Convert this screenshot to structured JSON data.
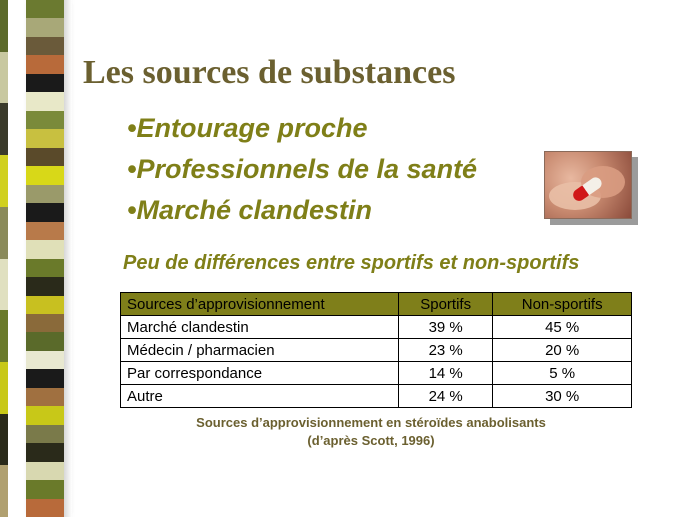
{
  "slide": {
    "title": "Les sources de substances",
    "bullets": [
      "•Entourage proche",
      "•Professionnels de la santé",
      "•Marché clandestin"
    ],
    "subtitle": "Peu de différences entre sportifs et non-sportifs"
  },
  "table": {
    "headers": [
      "Sources d’approvisionnement",
      "Sportifs",
      "Non-sportifs"
    ],
    "rows": [
      [
        "Marché clandestin",
        "39 %",
        "45 %"
      ],
      [
        "Médecin / pharmacien",
        "23 %",
        "20 %"
      ],
      [
        "Par correspondance",
        "14 %",
        "5 %"
      ],
      [
        "Autre",
        "24 %",
        "30 %"
      ]
    ]
  },
  "caption": {
    "line1": "Sources d’approvisionnement en stéroïdes anabolisants",
    "line2": "(d’après Scott, 1996)"
  },
  "colors": {
    "title": "#6b6030",
    "bullet": "#7f7f18",
    "table_header": "#7f7f1a"
  },
  "images": {
    "pill_photo": "pill-capsule-between-fingers"
  }
}
